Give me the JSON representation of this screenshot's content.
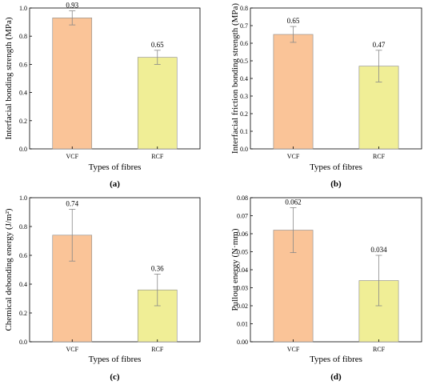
{
  "colors": {
    "VCF": "#fac498",
    "RCF": "#f0ee96",
    "bar_stroke": "#8a8a8a",
    "error": "#888888"
  },
  "chart_data": [
    {
      "type": "bar",
      "panel_label": "(a)",
      "xlabel": "Types of fibres",
      "ylabel": "Interfacial bonding strength (MPa)",
      "categories": [
        "VCF",
        "RCF"
      ],
      "values": [
        0.93,
        0.65
      ],
      "errors": [
        0.05,
        0.05
      ],
      "value_labels": [
        "0.93",
        "0.65"
      ],
      "ylim": [
        0,
        1.0
      ],
      "yticks": [
        "0.0",
        "0.2",
        "0.4",
        "0.6",
        "0.8",
        "1.0"
      ]
    },
    {
      "type": "bar",
      "panel_label": "(b)",
      "xlabel": "Types of fibres",
      "ylabel": "Interfacial friction bonding strength (MPa)",
      "categories": [
        "VCF",
        "RCF"
      ],
      "values": [
        0.65,
        0.47
      ],
      "errors": [
        0.045,
        0.09
      ],
      "value_labels": [
        "0.65",
        "0.47"
      ],
      "ylim": [
        0,
        0.8
      ],
      "yticks": [
        "0.0",
        "0.1",
        "0.2",
        "0.3",
        "0.4",
        "0.5",
        "0.6",
        "0.7",
        "0.8"
      ]
    },
    {
      "type": "bar",
      "panel_label": "(c)",
      "xlabel": "Types of fibres",
      "ylabel": "Chemical debonding energy (J/m²)",
      "categories": [
        "VCF",
        "RCF"
      ],
      "values": [
        0.74,
        0.36
      ],
      "errors": [
        0.18,
        0.11
      ],
      "value_labels": [
        "0.74",
        "0.36"
      ],
      "ylim": [
        0,
        1.0
      ],
      "yticks": [
        "0.0",
        "0.2",
        "0.4",
        "0.6",
        "0.8",
        "1.0"
      ]
    },
    {
      "type": "bar",
      "panel_label": "(d)",
      "xlabel": "Types of fibres",
      "ylabel": "Pullout energy (N·mm)",
      "categories": [
        "VCF",
        "RCF"
      ],
      "values": [
        0.062,
        0.034
      ],
      "errors": [
        0.0125,
        0.014
      ],
      "value_labels": [
        "0.062",
        "0.034"
      ],
      "ylim": [
        0,
        0.08
      ],
      "yticks": [
        "0.00",
        "0.01",
        "0.02",
        "0.03",
        "0.04",
        "0.05",
        "0.06",
        "0.07",
        "0.08"
      ]
    }
  ]
}
